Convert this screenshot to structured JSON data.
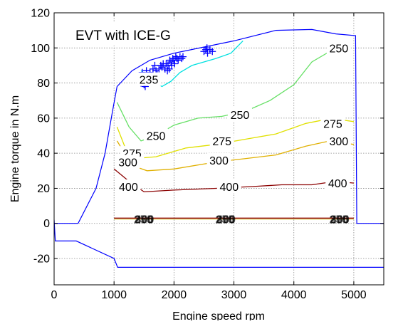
{
  "chart_data": {
    "type": "line",
    "title": "EVT with ICE-G",
    "xlabel": "Engine speed rpm",
    "ylabel": "Engine torque in N.m",
    "xlim": [
      0,
      5500
    ],
    "ylim": [
      -35,
      120
    ],
    "grid": true,
    "xticks": [
      0,
      1000,
      2000,
      3000,
      4000,
      5000
    ],
    "yticks": [
      -20,
      0,
      20,
      40,
      60,
      80,
      100,
      120
    ],
    "boundary": {
      "color": "#0000ff",
      "max_torque": [
        [
          400,
          0
        ],
        [
          700,
          20
        ],
        [
          850,
          40
        ],
        [
          980,
          65
        ],
        [
          1050,
          78
        ],
        [
          1300,
          87
        ],
        [
          1600,
          93
        ],
        [
          2000,
          97
        ],
        [
          3000,
          104
        ],
        [
          3700,
          110
        ],
        [
          4300,
          110.5
        ],
        [
          4700,
          108
        ],
        [
          5030,
          107
        ],
        [
          5050,
          0
        ],
        [
          5500,
          0
        ]
      ],
      "zero_segment_left": [
        [
          0,
          0
        ],
        [
          400,
          0
        ]
      ],
      "min_torque": [
        [
          0,
          2
        ],
        [
          20,
          -10
        ],
        [
          370,
          -10
        ],
        [
          1000,
          -20
        ],
        [
          1060,
          -25
        ],
        [
          5500,
          -25
        ]
      ]
    },
    "contours": [
      {
        "level": "235",
        "color": "#00e0e0",
        "points": [
          [
            1450,
            87
          ],
          [
            1700,
            80
          ],
          [
            1800,
            78
          ],
          [
            1950,
            81
          ],
          [
            2100,
            86
          ],
          [
            2300,
            90
          ],
          [
            2700,
            94
          ],
          [
            2950,
            97
          ],
          [
            3150,
            104
          ]
        ],
        "labels": [
          [
            1580,
            82
          ]
        ]
      },
      {
        "level": "250",
        "color": "#66e066",
        "points": [
          [
            1050,
            69
          ],
          [
            1250,
            55
          ],
          [
            1450,
            47
          ],
          [
            1700,
            50
          ],
          [
            2000,
            56
          ],
          [
            2400,
            60
          ],
          [
            2800,
            61
          ],
          [
            3200,
            64
          ],
          [
            3600,
            70
          ],
          [
            4000,
            79
          ],
          [
            4300,
            92
          ],
          [
            4600,
            98
          ],
          [
            4900,
            100
          ]
        ],
        "labels": [
          [
            1700,
            50
          ],
          [
            3100,
            62
          ],
          [
            4750,
            100
          ]
        ]
      },
      {
        "level": "275",
        "color": "#e0e000",
        "points": [
          [
            1050,
            55
          ],
          [
            1200,
            42
          ],
          [
            1350,
            37
          ],
          [
            1700,
            38
          ],
          [
            2200,
            43
          ],
          [
            2700,
            45
          ],
          [
            3200,
            48
          ],
          [
            3700,
            51
          ],
          [
            4200,
            57
          ],
          [
            4500,
            59
          ],
          [
            4800,
            59
          ],
          [
            5000,
            58
          ]
        ],
        "labels": [
          [
            1300,
            40
          ],
          [
            2800,
            47
          ],
          [
            4650,
            57
          ]
        ]
      },
      {
        "level": "300",
        "color": "#e0b000",
        "points": [
          [
            1050,
            47
          ],
          [
            1300,
            33
          ],
          [
            1550,
            30
          ],
          [
            2000,
            31
          ],
          [
            2700,
            35
          ],
          [
            3200,
            37
          ],
          [
            3700,
            39
          ],
          [
            4200,
            44
          ],
          [
            4600,
            47
          ],
          [
            5000,
            45
          ]
        ],
        "labels": [
          [
            1230,
            35
          ],
          [
            2750,
            36
          ],
          [
            4750,
            47
          ]
        ]
      },
      {
        "level": "400",
        "color": "#8b0000",
        "points": [
          [
            1000,
            31
          ],
          [
            1250,
            24
          ],
          [
            1500,
            18
          ],
          [
            2000,
            19
          ],
          [
            2700,
            20
          ],
          [
            3300,
            21
          ],
          [
            3800,
            22
          ],
          [
            4300,
            22
          ],
          [
            4700,
            24
          ],
          [
            5000,
            23
          ]
        ],
        "labels": [
          [
            1240,
            21
          ],
          [
            2920,
            21
          ],
          [
            4730,
            23
          ]
        ]
      }
    ],
    "degenerate_contours": {
      "color": "#8b0000",
      "y": 3,
      "x_range": [
        1000,
        5000
      ],
      "labels": [
        "250",
        "275",
        "300",
        "400"
      ],
      "label_x": [
        1500,
        2860,
        4760
      ]
    },
    "operating_points": {
      "color": "#0000ff",
      "marker": "+",
      "points": [
        [
          1450,
          80
        ],
        [
          1480,
          82
        ],
        [
          1520,
          78
        ],
        [
          1500,
          79
        ],
        [
          1550,
          80
        ],
        [
          1470,
          86
        ],
        [
          1540,
          87
        ],
        [
          1600,
          86
        ],
        [
          1650,
          88
        ],
        [
          1700,
          87
        ],
        [
          1750,
          88
        ],
        [
          1780,
          90
        ],
        [
          1800,
          89
        ],
        [
          1850,
          88
        ],
        [
          1870,
          91
        ],
        [
          1900,
          90
        ],
        [
          1930,
          93
        ],
        [
          1950,
          92
        ],
        [
          1980,
          94
        ],
        [
          2000,
          93
        ],
        [
          2030,
          95
        ],
        [
          2050,
          94
        ],
        [
          2100,
          95
        ],
        [
          2130,
          94
        ],
        [
          2150,
          95
        ],
        [
          1920,
          88
        ],
        [
          1960,
          90
        ],
        [
          1890,
          87
        ],
        [
          2010,
          91
        ],
        [
          2070,
          93
        ],
        [
          1820,
          91
        ],
        [
          1680,
          90
        ],
        [
          1720,
          85
        ],
        [
          2500,
          98
        ],
        [
          2530,
          99
        ],
        [
          2560,
          97
        ],
        [
          2600,
          99
        ],
        [
          2640,
          98
        ],
        [
          2550,
          100
        ]
      ]
    }
  }
}
